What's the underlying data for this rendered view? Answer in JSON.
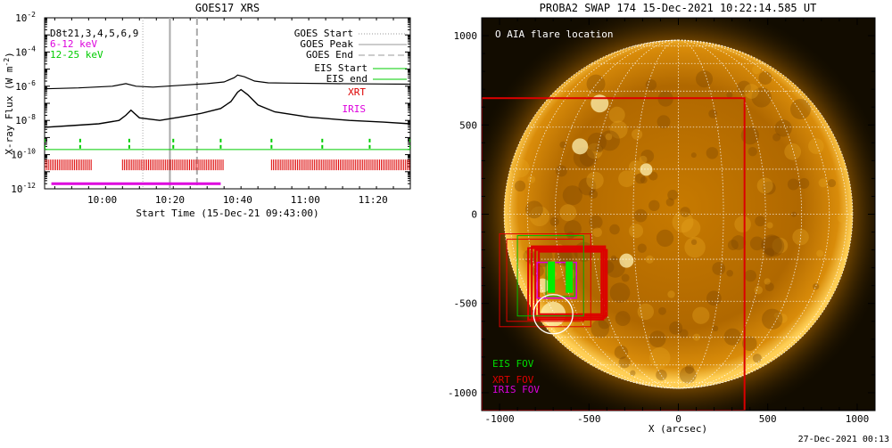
{
  "goes_panel": {
    "title": "GOES17 XRS",
    "chart_data": {
      "type": "line",
      "title": "GOES17 XRS",
      "xlabel": "Start Time (15-Dec-21 09:43:00)",
      "ylabel": "X-ray Flux (W m^-2)",
      "y_scale": "log",
      "ylim": [
        1e-12,
        0.01
      ],
      "xlim_minutes_after_start": [
        0,
        108
      ],
      "x_tick_labels": [
        "10:00",
        "10:20",
        "10:40",
        "11:00",
        "11:20"
      ],
      "x_tick_minutes": [
        17,
        37,
        57,
        77,
        97
      ],
      "y_tick_labels": [
        {
          "base": "10",
          "exp": "-2",
          "value": -2
        },
        {
          "base": "10",
          "exp": "-4",
          "value": -4
        },
        {
          "base": "10",
          "exp": "-6",
          "value": -6
        },
        {
          "base": "10",
          "exp": "-8",
          "value": -8
        },
        {
          "base": "10",
          "exp": "-10",
          "value": -10
        },
        {
          "base": "10",
          "exp": "-12",
          "value": -12
        }
      ],
      "series": [
        {
          "name": "GOES long channel",
          "color": "#000000",
          "x": [
            0,
            10,
            20,
            24,
            27,
            32,
            40,
            48,
            53,
            56,
            57,
            59,
            62,
            66,
            72,
            85,
            100,
            108
          ],
          "log_y": [
            -6.15,
            -6.1,
            -6.0,
            -5.85,
            -6.0,
            -6.05,
            -5.95,
            -5.85,
            -5.75,
            -5.5,
            -5.35,
            -5.45,
            -5.7,
            -5.8,
            -5.82,
            -5.85,
            -5.87,
            -5.88
          ]
        },
        {
          "name": "GOES short channel",
          "color": "#000000",
          "x": [
            0,
            8,
            16,
            22,
            24,
            25.5,
            28,
            34,
            40,
            46,
            52,
            55,
            57,
            58,
            60,
            63,
            68,
            78,
            90,
            100,
            108
          ],
          "log_y": [
            -8.4,
            -8.3,
            -8.2,
            -8.0,
            -7.7,
            -7.4,
            -7.85,
            -8.0,
            -7.8,
            -7.6,
            -7.3,
            -6.9,
            -6.35,
            -6.2,
            -6.5,
            -7.1,
            -7.5,
            -7.8,
            -8.0,
            -8.1,
            -8.2
          ]
        }
      ],
      "legend_top_left": [
        "D8t21,3,4,5,6,9",
        "6-12 keV",
        "12-25 keV"
      ],
      "legend_top_left_colors": [
        "#000000",
        "#dd00dd",
        "#00cc00"
      ],
      "legend_right": [
        {
          "label": "GOES Start",
          "style": "dotted",
          "color": "#999999"
        },
        {
          "label": "GOES Peak",
          "style": "solid",
          "color": "#999999"
        },
        {
          "label": "GOES End",
          "style": "dashed",
          "color": "#999999"
        },
        {
          "label": "EIS Start",
          "style": "solid",
          "color": "#00cc00"
        },
        {
          "label": "EIS end",
          "style": "solid",
          "color": "#00cc00"
        },
        {
          "label": "XRT",
          "style": "text",
          "color": "#dd0000"
        },
        {
          "label": "IRIS",
          "style": "text",
          "color": "#dd00dd"
        }
      ],
      "goes_markers_minutes": {
        "start": 29,
        "peak": 37,
        "end": 45
      },
      "eis_log_y": -9.7,
      "eis_tick_minutes": [
        0,
        10.5,
        25,
        38,
        52,
        67,
        82,
        96,
        108
      ],
      "xrt_log_y": -10.6,
      "xrt_segments_minutes": [
        [
          0,
          14
        ],
        [
          23,
          53
        ],
        [
          67,
          108
        ]
      ],
      "iris_log_y": -11.7,
      "iris_segment_minutes": [
        2,
        52
      ]
    }
  },
  "swap_panel": {
    "title": "PROBA2 SWAP 174 15-Dec-2021 10:22:14.585 UT",
    "xlabel": "X (arcsec)",
    "x_tick_labels": [
      "-1000",
      "-500",
      "0",
      "500",
      "1000"
    ],
    "x_tick_values": [
      -1000,
      -500,
      0,
      500,
      1000
    ],
    "y_tick_labels": [
      "1000",
      "500",
      "0",
      "-500",
      "-1000"
    ],
    "y_tick_values": [
      1000,
      500,
      0,
      -500,
      -1000
    ],
    "xlim": [
      -1100,
      1100
    ],
    "ylim": [
      -1100,
      1100
    ],
    "aia_legend": "O AIA flare location",
    "aia_location": [
      -700,
      -560
    ],
    "fov_labels": [
      {
        "label": "EIS FOV",
        "color": "#00dd00"
      },
      {
        "label": "XRT FOV",
        "color": "#dd0000"
      },
      {
        "label": "IRIS FOV",
        "color": "#dd00dd"
      }
    ],
    "xrt_big_fov": {
      "x0": -1100,
      "x1": 370,
      "y0": -1100,
      "y1": 650
    },
    "xrt_small_fovs": [
      {
        "x0": -1000,
        "x1": -490,
        "y0": -630,
        "y1": -110
      },
      {
        "x0": -960,
        "x1": -530,
        "y0": -600,
        "y1": -140
      },
      {
        "x0": -840,
        "x1": -420,
        "y0": -590,
        "y1": -190
      },
      {
        "x0": -820,
        "x1": -410,
        "y0": -580,
        "y1": -180
      },
      {
        "x0": -800,
        "x1": -400,
        "y0": -570,
        "y1": -200
      },
      {
        "x0": -780,
        "x1": -430,
        "y0": -560,
        "y1": -210
      }
    ],
    "eis_fovs": [
      {
        "x0": -900,
        "x1": -530,
        "y0": -570,
        "y1": -120
      },
      {
        "x0": -740,
        "x1": -580,
        "y0": -460,
        "y1": -270
      }
    ],
    "eis_slits": [
      {
        "x": -710,
        "y0": -440,
        "y1": -265
      },
      {
        "x": -610,
        "y0": -440,
        "y1": -265
      }
    ],
    "iris_fov": {
      "x0": -790,
      "x1": -570,
      "y0": -470,
      "y1": -270
    },
    "sun_radius_arcsec": 975,
    "timestamp": "27-Dec-2021 00:13"
  }
}
